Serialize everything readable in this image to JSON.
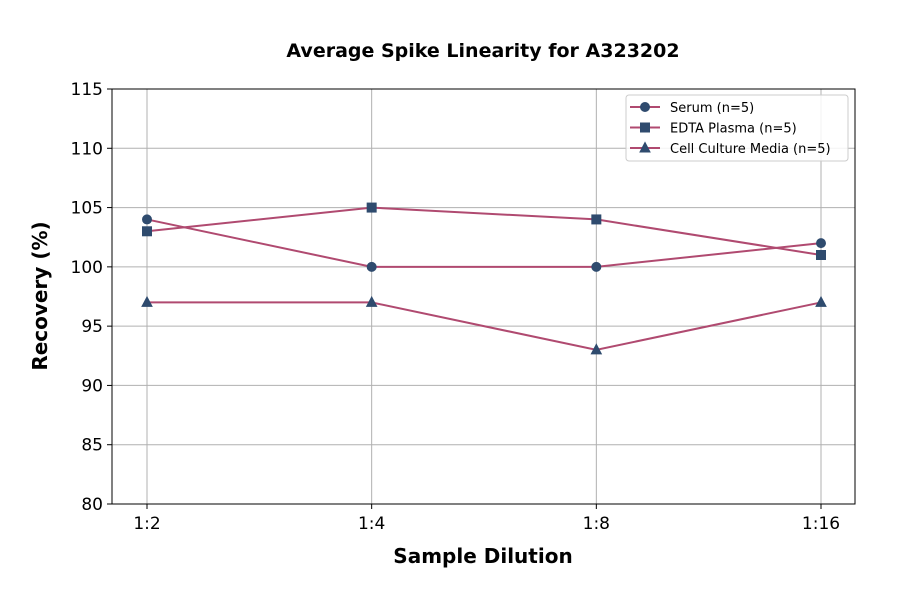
{
  "chart_data": {
    "type": "line",
    "title": "Average Spike Linearity for A323202",
    "xlabel": "Sample Dilution",
    "ylabel": "Recovery (%)",
    "categories": [
      "1:2",
      "1:4",
      "1:8",
      "1:16"
    ],
    "ylim": [
      80,
      115
    ],
    "yticks": [
      80,
      85,
      90,
      95,
      100,
      105,
      110,
      115
    ],
    "grid": true,
    "legend_position": "top-right",
    "line_color": "#b04a70",
    "marker_color": "#2f4b6e",
    "series": [
      {
        "name": "Serum (n=5)",
        "marker": "circle",
        "values": [
          104,
          100,
          100,
          102
        ]
      },
      {
        "name": "EDTA Plasma (n=5)",
        "marker": "square",
        "values": [
          103,
          105,
          104,
          101
        ]
      },
      {
        "name": "Cell Culture Media (n=5)",
        "marker": "triangle",
        "values": [
          97,
          97,
          93,
          97
        ]
      }
    ]
  }
}
